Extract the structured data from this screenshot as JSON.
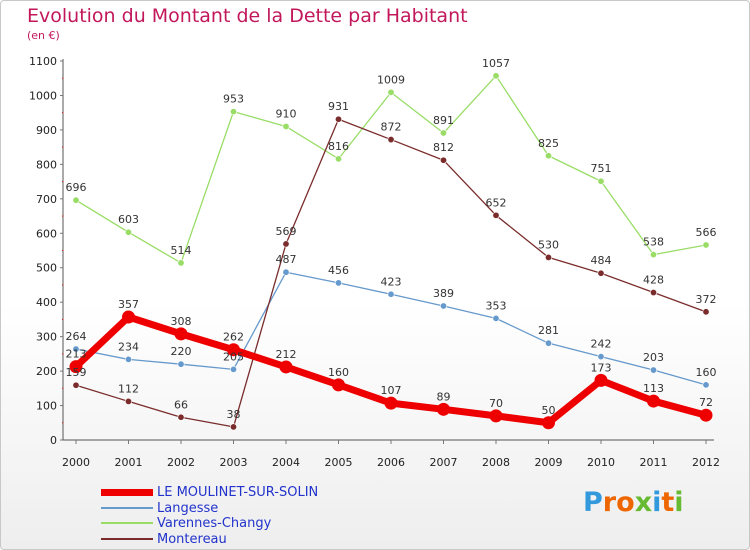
{
  "title": "Evolution du Montant de la Dette par Habitant",
  "unit": "(en €)",
  "logo": "Proxiti",
  "chart_data": {
    "type": "line",
    "x": [
      "2000",
      "2001",
      "2002",
      "2003",
      "2004",
      "2005",
      "2006",
      "2007",
      "2008",
      "2009",
      "2010",
      "2011",
      "2012"
    ],
    "ylim": [
      0,
      1100
    ],
    "yticks": [
      0,
      100,
      200,
      300,
      400,
      500,
      600,
      700,
      800,
      900,
      1000,
      1100
    ],
    "grid": false,
    "legend_position": "bottom-left",
    "series": [
      {
        "name": "LE MOULINET-SUR-SOLIN",
        "color": "#ee0000",
        "width": 7,
        "values": [
          213,
          357,
          308,
          262,
          212,
          160,
          107,
          89,
          70,
          50,
          173,
          113,
          72
        ]
      },
      {
        "name": "Langesse",
        "color": "#6699cc",
        "width": 1.3,
        "values": [
          264,
          234,
          220,
          205,
          487,
          456,
          423,
          389,
          353,
          281,
          242,
          203,
          160
        ]
      },
      {
        "name": "Varennes-Changy",
        "color": "#99dd66",
        "width": 1.3,
        "values": [
          696,
          603,
          514,
          953,
          910,
          816,
          1009,
          891,
          1057,
          825,
          751,
          538,
          566
        ]
      },
      {
        "name": "Montereau",
        "color": "#7a2c2c",
        "width": 1.3,
        "values": [
          159,
          112,
          66,
          38,
          569,
          931,
          872,
          812,
          652,
          530,
          484,
          428,
          372
        ]
      }
    ]
  }
}
